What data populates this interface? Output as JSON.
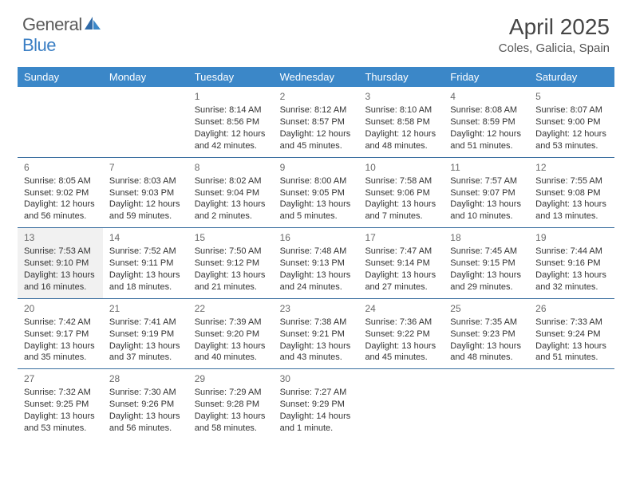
{
  "logo": {
    "part1": "General",
    "part2": "Blue"
  },
  "title": "April 2025",
  "location": "Coles, Galicia, Spain",
  "colors": {
    "header_bg": "#3b87c8",
    "header_fg": "#ffffff",
    "row_border": "#3b6fa0",
    "shaded_bg": "#f1f1f1",
    "logo_gray": "#5a5a5a",
    "logo_blue": "#3b7fc4"
  },
  "weekdays": [
    "Sunday",
    "Monday",
    "Tuesday",
    "Wednesday",
    "Thursday",
    "Friday",
    "Saturday"
  ],
  "weeks": [
    [
      null,
      null,
      {
        "n": "1",
        "sr": "Sunrise: 8:14 AM",
        "ss": "Sunset: 8:56 PM",
        "d1": "Daylight: 12 hours",
        "d2": "and 42 minutes."
      },
      {
        "n": "2",
        "sr": "Sunrise: 8:12 AM",
        "ss": "Sunset: 8:57 PM",
        "d1": "Daylight: 12 hours",
        "d2": "and 45 minutes."
      },
      {
        "n": "3",
        "sr": "Sunrise: 8:10 AM",
        "ss": "Sunset: 8:58 PM",
        "d1": "Daylight: 12 hours",
        "d2": "and 48 minutes."
      },
      {
        "n": "4",
        "sr": "Sunrise: 8:08 AM",
        "ss": "Sunset: 8:59 PM",
        "d1": "Daylight: 12 hours",
        "d2": "and 51 minutes."
      },
      {
        "n": "5",
        "sr": "Sunrise: 8:07 AM",
        "ss": "Sunset: 9:00 PM",
        "d1": "Daylight: 12 hours",
        "d2": "and 53 minutes."
      }
    ],
    [
      {
        "n": "6",
        "sr": "Sunrise: 8:05 AM",
        "ss": "Sunset: 9:02 PM",
        "d1": "Daylight: 12 hours",
        "d2": "and 56 minutes."
      },
      {
        "n": "7",
        "sr": "Sunrise: 8:03 AM",
        "ss": "Sunset: 9:03 PM",
        "d1": "Daylight: 12 hours",
        "d2": "and 59 minutes."
      },
      {
        "n": "8",
        "sr": "Sunrise: 8:02 AM",
        "ss": "Sunset: 9:04 PM",
        "d1": "Daylight: 13 hours",
        "d2": "and 2 minutes."
      },
      {
        "n": "9",
        "sr": "Sunrise: 8:00 AM",
        "ss": "Sunset: 9:05 PM",
        "d1": "Daylight: 13 hours",
        "d2": "and 5 minutes."
      },
      {
        "n": "10",
        "sr": "Sunrise: 7:58 AM",
        "ss": "Sunset: 9:06 PM",
        "d1": "Daylight: 13 hours",
        "d2": "and 7 minutes."
      },
      {
        "n": "11",
        "sr": "Sunrise: 7:57 AM",
        "ss": "Sunset: 9:07 PM",
        "d1": "Daylight: 13 hours",
        "d2": "and 10 minutes."
      },
      {
        "n": "12",
        "sr": "Sunrise: 7:55 AM",
        "ss": "Sunset: 9:08 PM",
        "d1": "Daylight: 13 hours",
        "d2": "and 13 minutes."
      }
    ],
    [
      {
        "n": "13",
        "sr": "Sunrise: 7:53 AM",
        "ss": "Sunset: 9:10 PM",
        "d1": "Daylight: 13 hours",
        "d2": "and 16 minutes.",
        "shaded": true
      },
      {
        "n": "14",
        "sr": "Sunrise: 7:52 AM",
        "ss": "Sunset: 9:11 PM",
        "d1": "Daylight: 13 hours",
        "d2": "and 18 minutes."
      },
      {
        "n": "15",
        "sr": "Sunrise: 7:50 AM",
        "ss": "Sunset: 9:12 PM",
        "d1": "Daylight: 13 hours",
        "d2": "and 21 minutes."
      },
      {
        "n": "16",
        "sr": "Sunrise: 7:48 AM",
        "ss": "Sunset: 9:13 PM",
        "d1": "Daylight: 13 hours",
        "d2": "and 24 minutes."
      },
      {
        "n": "17",
        "sr": "Sunrise: 7:47 AM",
        "ss": "Sunset: 9:14 PM",
        "d1": "Daylight: 13 hours",
        "d2": "and 27 minutes."
      },
      {
        "n": "18",
        "sr": "Sunrise: 7:45 AM",
        "ss": "Sunset: 9:15 PM",
        "d1": "Daylight: 13 hours",
        "d2": "and 29 minutes."
      },
      {
        "n": "19",
        "sr": "Sunrise: 7:44 AM",
        "ss": "Sunset: 9:16 PM",
        "d1": "Daylight: 13 hours",
        "d2": "and 32 minutes."
      }
    ],
    [
      {
        "n": "20",
        "sr": "Sunrise: 7:42 AM",
        "ss": "Sunset: 9:17 PM",
        "d1": "Daylight: 13 hours",
        "d2": "and 35 minutes."
      },
      {
        "n": "21",
        "sr": "Sunrise: 7:41 AM",
        "ss": "Sunset: 9:19 PM",
        "d1": "Daylight: 13 hours",
        "d2": "and 37 minutes."
      },
      {
        "n": "22",
        "sr": "Sunrise: 7:39 AM",
        "ss": "Sunset: 9:20 PM",
        "d1": "Daylight: 13 hours",
        "d2": "and 40 minutes."
      },
      {
        "n": "23",
        "sr": "Sunrise: 7:38 AM",
        "ss": "Sunset: 9:21 PM",
        "d1": "Daylight: 13 hours",
        "d2": "and 43 minutes."
      },
      {
        "n": "24",
        "sr": "Sunrise: 7:36 AM",
        "ss": "Sunset: 9:22 PM",
        "d1": "Daylight: 13 hours",
        "d2": "and 45 minutes."
      },
      {
        "n": "25",
        "sr": "Sunrise: 7:35 AM",
        "ss": "Sunset: 9:23 PM",
        "d1": "Daylight: 13 hours",
        "d2": "and 48 minutes."
      },
      {
        "n": "26",
        "sr": "Sunrise: 7:33 AM",
        "ss": "Sunset: 9:24 PM",
        "d1": "Daylight: 13 hours",
        "d2": "and 51 minutes."
      }
    ],
    [
      {
        "n": "27",
        "sr": "Sunrise: 7:32 AM",
        "ss": "Sunset: 9:25 PM",
        "d1": "Daylight: 13 hours",
        "d2": "and 53 minutes."
      },
      {
        "n": "28",
        "sr": "Sunrise: 7:30 AM",
        "ss": "Sunset: 9:26 PM",
        "d1": "Daylight: 13 hours",
        "d2": "and 56 minutes."
      },
      {
        "n": "29",
        "sr": "Sunrise: 7:29 AM",
        "ss": "Sunset: 9:28 PM",
        "d1": "Daylight: 13 hours",
        "d2": "and 58 minutes."
      },
      {
        "n": "30",
        "sr": "Sunrise: 7:27 AM",
        "ss": "Sunset: 9:29 PM",
        "d1": "Daylight: 14 hours",
        "d2": "and 1 minute."
      },
      null,
      null,
      null
    ]
  ]
}
